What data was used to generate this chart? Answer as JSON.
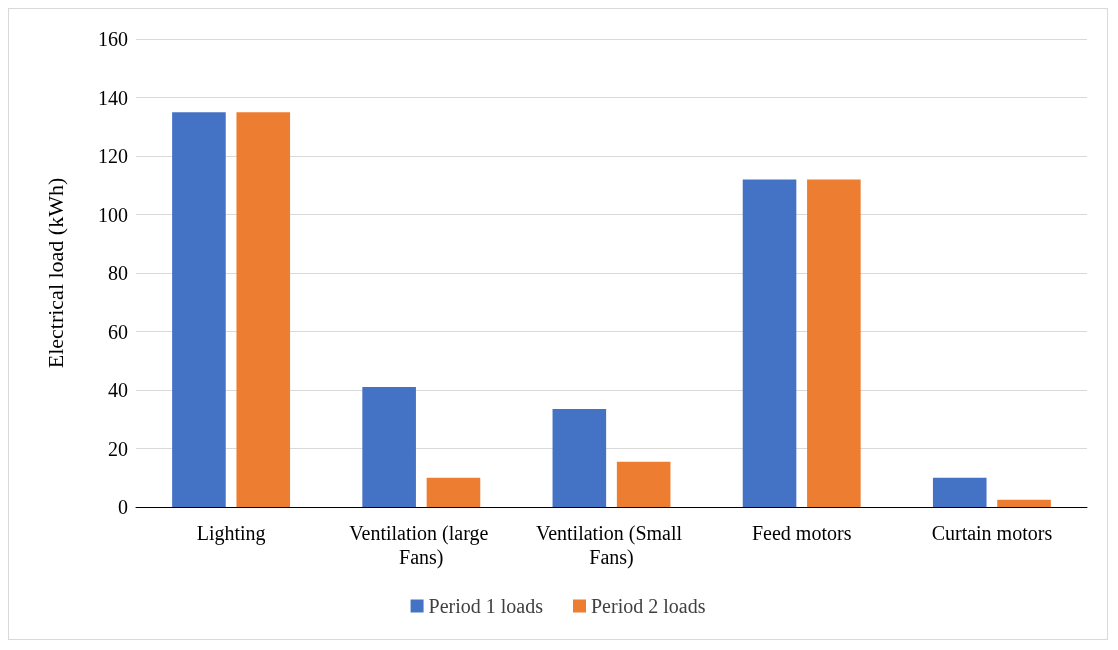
{
  "chart_data": {
    "type": "bar",
    "ylabel": "Electrical load (kWh)",
    "categories": [
      "Lighting",
      "Ventilation (large Fans)",
      "Ventilation (Small Fans)",
      "Feed motors",
      "Curtain motors"
    ],
    "series": [
      {
        "name": "Period 1 loads",
        "color": "#4472c4",
        "values": [
          135,
          41,
          33.5,
          112,
          10
        ]
      },
      {
        "name": "Period 2 loads",
        "color": "#ed7d31",
        "values": [
          135,
          10,
          15.5,
          112,
          2.5
        ]
      }
    ],
    "ylim": [
      0,
      160
    ],
    "yticks": [
      0,
      20,
      40,
      60,
      80,
      100,
      120,
      140,
      160
    ],
    "grid": "y",
    "legend": "bottom"
  }
}
